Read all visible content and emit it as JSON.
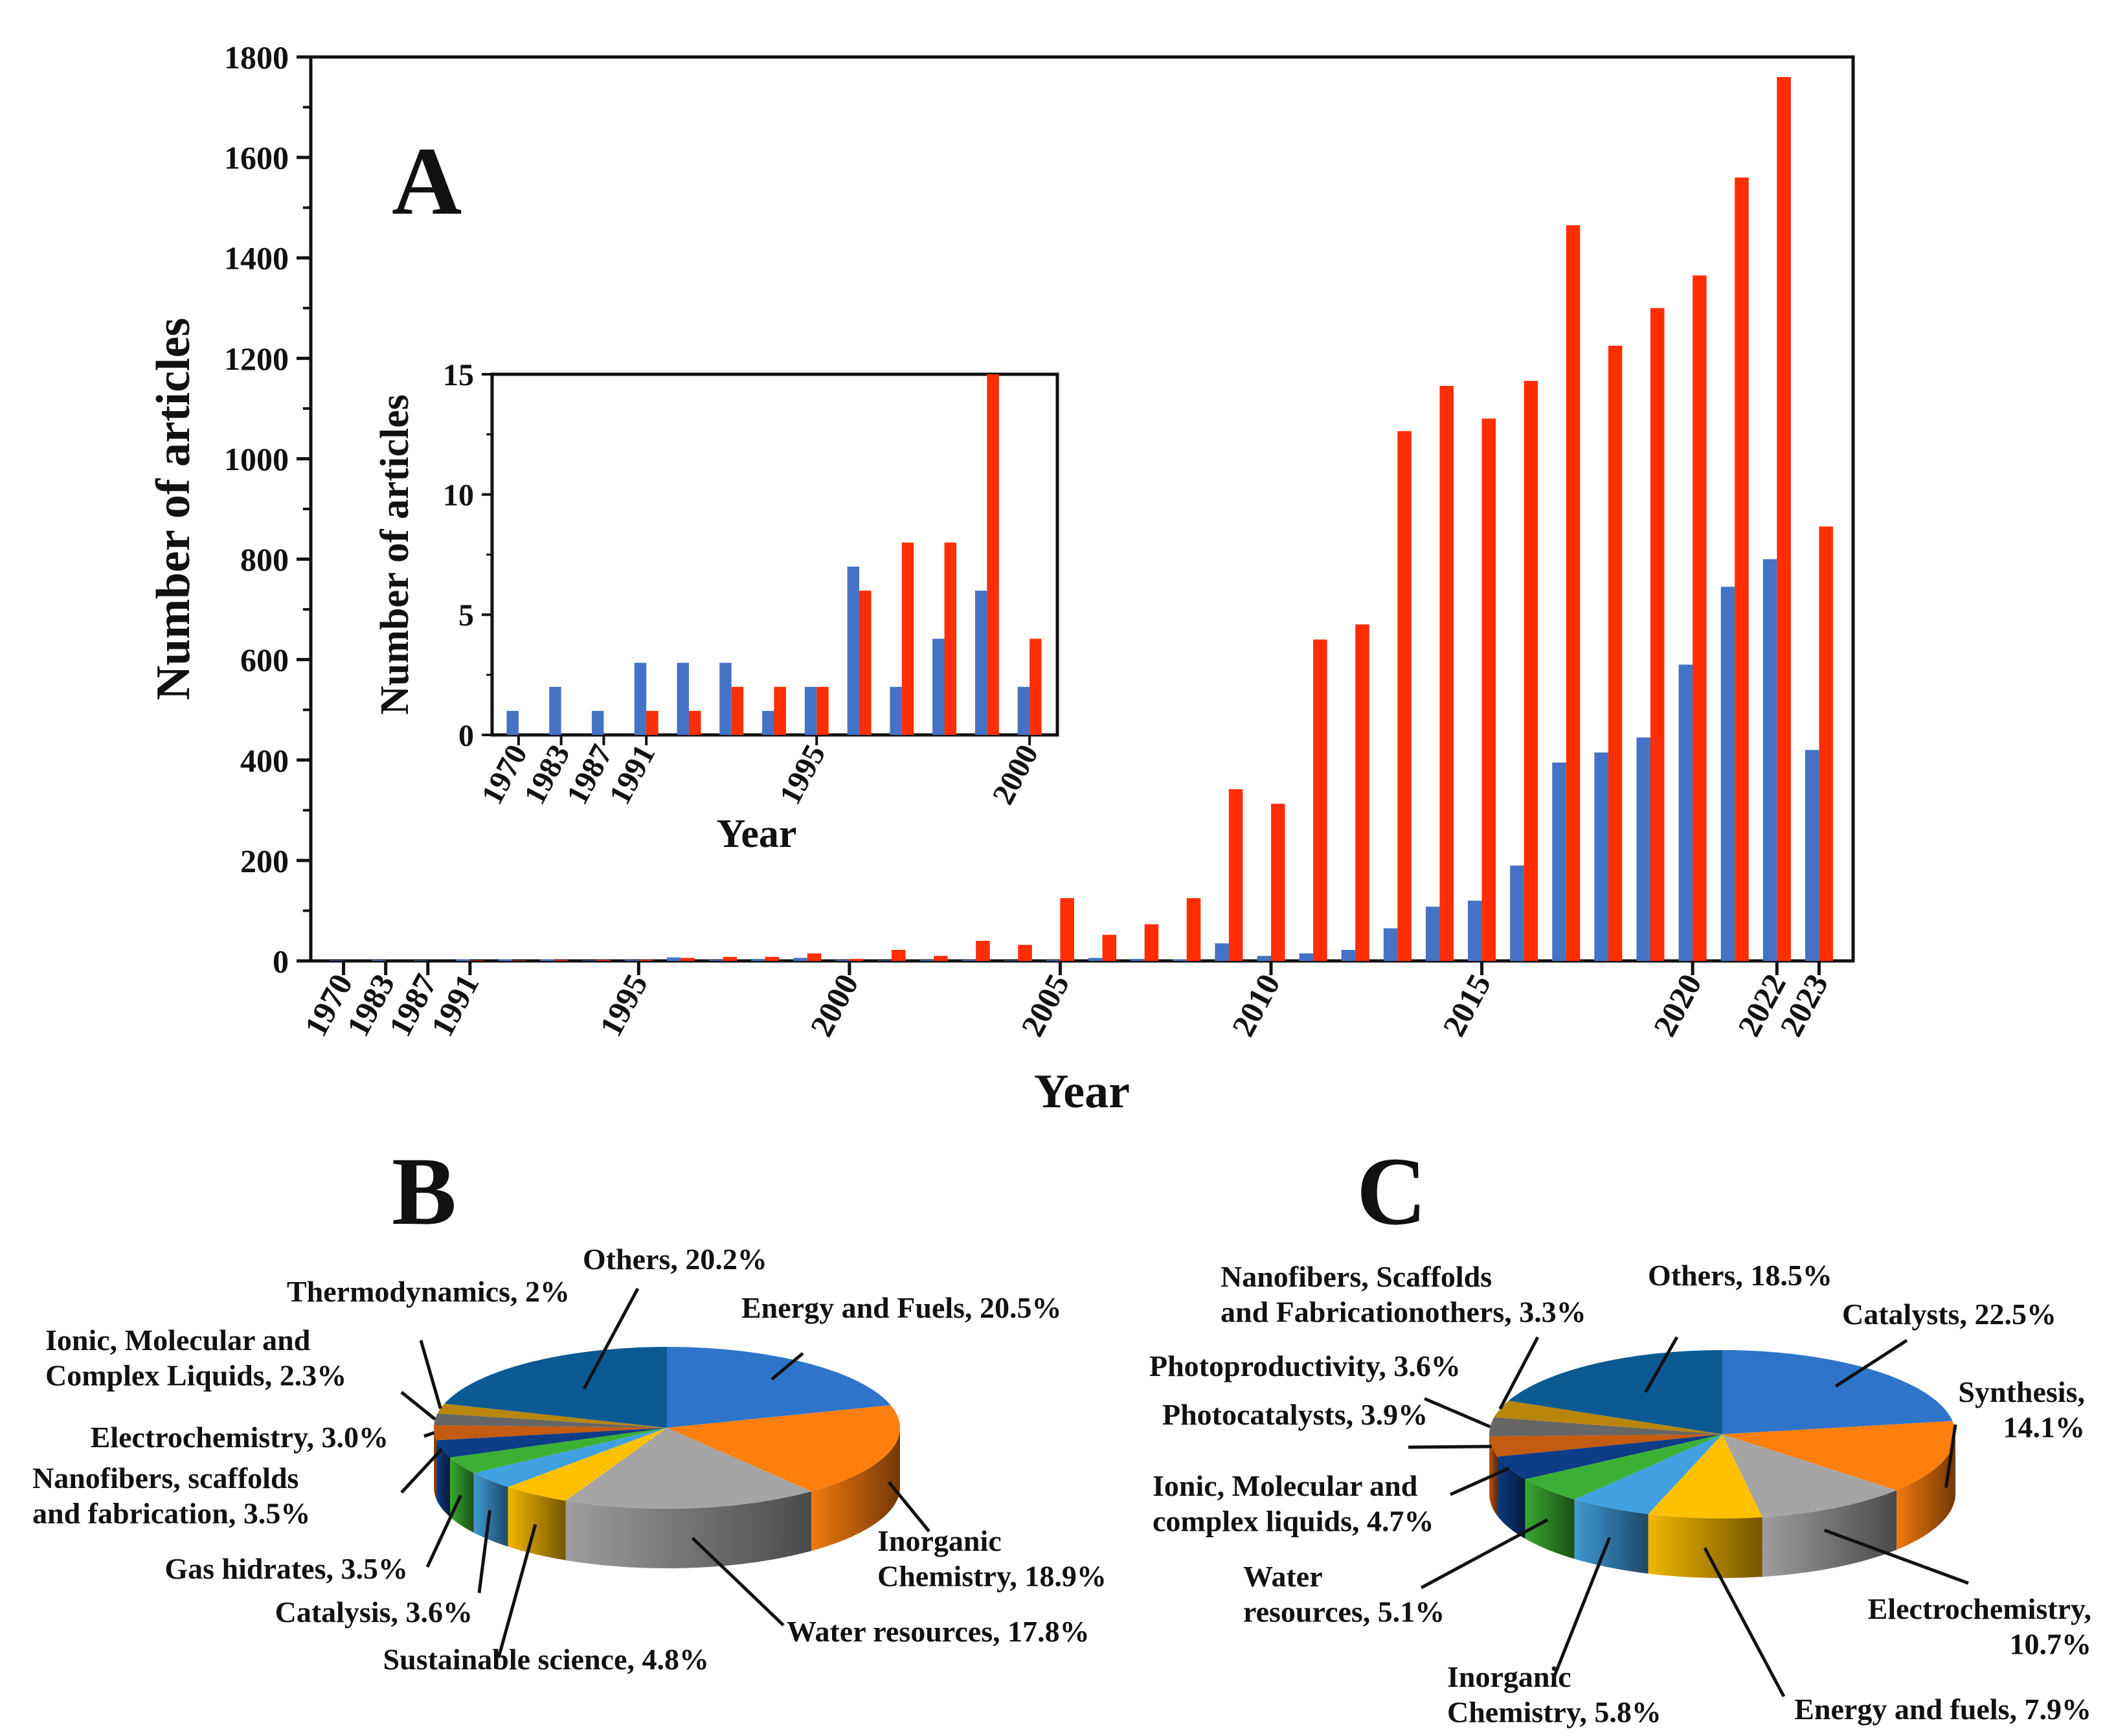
{
  "colors": {
    "blue": "#4472C4",
    "red": "#FF2D00",
    "axis": "#111111",
    "pie": [
      "#2E75C9",
      "#FF7F0E",
      "#A5A5A5",
      "#FFC000",
      "#41A1E0",
      "#3CB034",
      "#0C3D86",
      "#C55A11",
      "#666666",
      "#B8860B",
      "#0B5A93"
    ]
  },
  "panel_labels": {
    "a": "A",
    "b": "B",
    "c": "C"
  },
  "chart_data": [
    {
      "id": "main",
      "type": "bar",
      "ylabel": "Number of articles",
      "xlabel": "Year",
      "ylim": [
        0,
        1800
      ],
      "yticks": [
        0,
        200,
        400,
        600,
        800,
        1000,
        1200,
        1400,
        1600,
        1800
      ],
      "years": [
        1970,
        1983,
        1987,
        1991,
        1992,
        1993,
        1994,
        1995,
        1996,
        1997,
        1998,
        1999,
        2000,
        2001,
        2002,
        2003,
        2004,
        2005,
        2006,
        2007,
        2008,
        2009,
        2010,
        2011,
        2012,
        2013,
        2014,
        2015,
        2016,
        2017,
        2018,
        2019,
        2020,
        2021,
        2022,
        2023
      ],
      "xticklabels": [
        "1970",
        "1983",
        "1987",
        "1991",
        "1995",
        "2000",
        "2005",
        "2010",
        "2015",
        "2020",
        "2022",
        "2023"
      ],
      "xtickyears": [
        1970,
        1983,
        1987,
        1991,
        1995,
        2000,
        2005,
        2010,
        2015,
        2020,
        2022,
        2023
      ],
      "series": [
        {
          "name": "blue",
          "values": [
            1,
            2,
            1,
            3,
            3,
            3,
            1,
            2,
            7,
            2,
            4,
            6,
            2,
            1,
            2,
            2,
            1,
            2,
            6,
            4,
            3,
            35,
            10,
            15,
            22,
            65,
            108,
            120,
            190,
            395,
            415,
            445,
            590,
            745,
            800,
            420
          ]
        },
        {
          "name": "red",
          "values": [
            0,
            0,
            0,
            1,
            1,
            2,
            2,
            2,
            6,
            8,
            8,
            15,
            4,
            22,
            10,
            40,
            32,
            125,
            52,
            73,
            125,
            342,
            313,
            640,
            670,
            1055,
            1145,
            1080,
            1155,
            1465,
            1225,
            1300,
            1365,
            1560,
            1760,
            865
          ]
        }
      ]
    },
    {
      "id": "inset",
      "type": "bar",
      "ylabel": "Number of articles",
      "xlabel": "Year",
      "ylim": [
        0,
        15
      ],
      "yticks": [
        0,
        5,
        10,
        15
      ],
      "years": [
        1970,
        1983,
        1987,
        1991,
        1992,
        1993,
        1994,
        1995,
        1996,
        1997,
        1998,
        1999,
        2000
      ],
      "xticklabels": [
        "1970",
        "1983",
        "1987",
        "1991",
        "1995",
        "2000"
      ],
      "xtickyears": [
        1970,
        1983,
        1987,
        1991,
        1995,
        2000
      ],
      "series": [
        {
          "name": "blue",
          "values": [
            1,
            2,
            1,
            3,
            3,
            3,
            1,
            2,
            7,
            2,
            4,
            6,
            2
          ]
        },
        {
          "name": "red",
          "values": [
            0,
            0,
            0,
            1,
            1,
            2,
            2,
            2,
            6,
            8,
            8,
            15,
            4
          ]
        }
      ]
    },
    {
      "id": "pieB",
      "type": "pie",
      "slices": [
        {
          "label": "Energy and Fuels, 20.5%",
          "value": 20.5
        },
        {
          "label": "Inorganic Chemistry, 18.9%",
          "value": 18.9
        },
        {
          "label": "Water resources, 17.8%",
          "value": 17.8
        },
        {
          "label": "Sustainable science, 4.8%",
          "value": 4.8
        },
        {
          "label": "Catalysis, 3.6%",
          "value": 3.6
        },
        {
          "label": "Gas hidrates, 3.5%",
          "value": 3.5
        },
        {
          "label": "Nanofibers,  scaffolds and fabrication, 3.5%",
          "value": 3.5
        },
        {
          "label": "Electrochemistry, 3.0%",
          "value": 3.0
        },
        {
          "label": "Ionic, Molecular and Complex Liquids, 2.3%",
          "value": 2.3
        },
        {
          "label": "Thermodynamics, 2%",
          "value": 2.0
        },
        {
          "label": "Others, 20.2%",
          "value": 20.2
        }
      ]
    },
    {
      "id": "pieC",
      "type": "pie",
      "slices": [
        {
          "label": "Catalysts, 22.5%",
          "value": 22.5
        },
        {
          "label": "Synthesis, 14.1%",
          "value": 14.1
        },
        {
          "label": "Electrochemistry, 10.7%",
          "value": 10.7
        },
        {
          "label": "Energy and fuels, 7.9%",
          "value": 7.9
        },
        {
          "label": "Inorganic Chemistry, 5.8%",
          "value": 5.8
        },
        {
          "label": "Water resources, 5.1%",
          "value": 5.1
        },
        {
          "label": "Ionic, Molecular and complex liquids, 4.7%",
          "value": 4.7
        },
        {
          "label": "Photocatalysts, 3.9%",
          "value": 3.9
        },
        {
          "label": "Photoproductivity, 3.6%",
          "value": 3.6
        },
        {
          "label": "Nanofibers, Scaffolds and Fabricationothers, 3.3%",
          "value": 3.3
        },
        {
          "label": "Others, 18.5%",
          "value": 18.5
        }
      ]
    }
  ],
  "pie_text": {
    "b": [
      [
        "Energy and Fuels, 20.5%"
      ],
      [
        "Inorganic",
        "Chemistry, 18.9%"
      ],
      [
        "Water resources, 17.8%"
      ],
      [
        "Sustainable science, 4.8%"
      ],
      [
        "Catalysis, 3.6%"
      ],
      [
        "Gas hidrates, 3.5%"
      ],
      [
        "Nanofibers,  scaffolds",
        "and fabrication, 3.5%"
      ],
      [
        "Electrochemistry, 3.0%"
      ],
      [
        "Ionic, Molecular and",
        "Complex Liquids, 2.3%"
      ],
      [
        "Thermodynamics, 2%"
      ],
      [
        "Others, 20.2%"
      ]
    ],
    "c": [
      [
        "Catalysts, 22.5%"
      ],
      [
        "Synthesis,",
        "14.1%"
      ],
      [
        "Electrochemistry,",
        "10.7%"
      ],
      [
        "Energy and fuels, 7.9%"
      ],
      [
        "Inorganic",
        "Chemistry, 5.8%"
      ],
      [
        "Water",
        "resources, 5.1%"
      ],
      [
        "Ionic, Molecular and",
        "complex liquids, 4.7%"
      ],
      [
        "Photocatalysts, 3.9%"
      ],
      [
        "Photoproductivity, 3.6%"
      ],
      [
        "Nanofibers, Scaffolds",
        "and Fabricationothers, 3.3%"
      ],
      [
        "Others, 18.5%"
      ]
    ]
  }
}
